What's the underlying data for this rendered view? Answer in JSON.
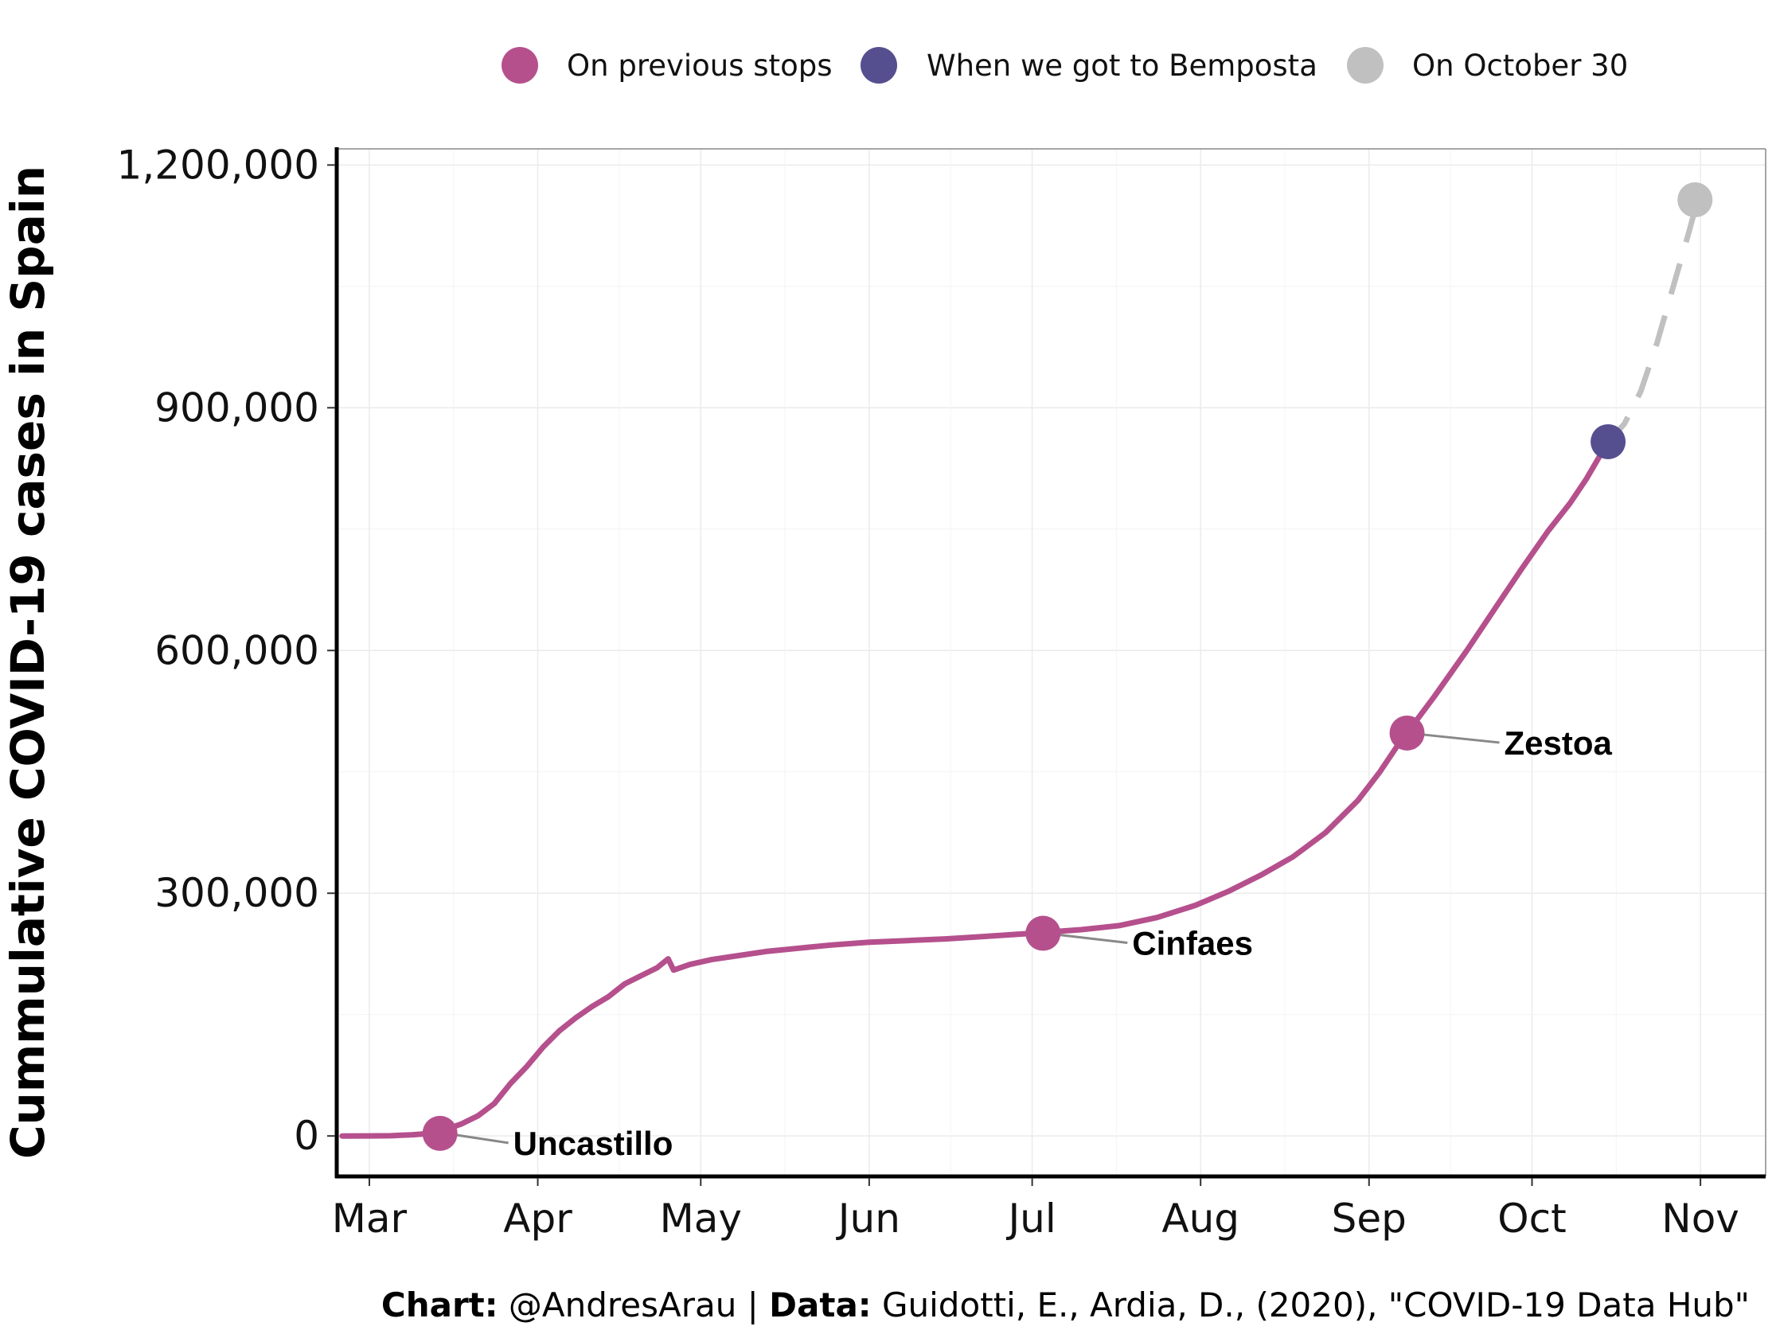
{
  "chart_data": {
    "type": "line",
    "ylabel": "Cummulative COVID-19 cases in Spain",
    "xlabel": "",
    "ylim": [
      -50000,
      1220000
    ],
    "xlim": [
      "2020-02-24",
      "2020-11-13"
    ],
    "yticks": [
      {
        "value": 0,
        "label": "0"
      },
      {
        "value": 300000,
        "label": "300,000"
      },
      {
        "value": 600000,
        "label": "600,000"
      },
      {
        "value": 900000,
        "label": "900,000"
      },
      {
        "value": 1200000,
        "label": "1,200,000"
      }
    ],
    "xticks": [
      {
        "date": "2020-03-01",
        "label": "Mar"
      },
      {
        "date": "2020-04-01",
        "label": "Apr"
      },
      {
        "date": "2020-05-01",
        "label": "May"
      },
      {
        "date": "2020-06-01",
        "label": "Jun"
      },
      {
        "date": "2020-07-01",
        "label": "Jul"
      },
      {
        "date": "2020-08-01",
        "label": "Aug"
      },
      {
        "date": "2020-09-01",
        "label": "Sep"
      },
      {
        "date": "2020-10-01",
        "label": "Oct"
      },
      {
        "date": "2020-11-01",
        "label": "Nov"
      }
    ],
    "grid": true,
    "legend_position": "top",
    "legend": [
      {
        "label": "On previous stops",
        "color": "#b5508d"
      },
      {
        "label": "When we got to Bemposta",
        "color": "#554f8f"
      },
      {
        "label": "On October 30",
        "color": "#c0c0c0"
      }
    ],
    "series": [
      {
        "style": "solid",
        "color": "#b5508d",
        "points": [
          [
            "2020-02-25",
            0
          ],
          [
            "2020-03-01",
            100
          ],
          [
            "2020-03-05",
            300
          ],
          [
            "2020-03-09",
            1500
          ],
          [
            "2020-03-12",
            3000
          ],
          [
            "2020-03-15",
            7800
          ],
          [
            "2020-03-18",
            15000
          ],
          [
            "2020-03-21",
            25000
          ],
          [
            "2020-03-24",
            40000
          ],
          [
            "2020-03-27",
            65000
          ],
          [
            "2020-03-30",
            86000
          ],
          [
            "2020-04-02",
            110000
          ],
          [
            "2020-04-05",
            130000
          ],
          [
            "2020-04-08",
            146000
          ],
          [
            "2020-04-11",
            160000
          ],
          [
            "2020-04-14",
            172000
          ],
          [
            "2020-04-17",
            188000
          ],
          [
            "2020-04-20",
            198000
          ],
          [
            "2020-04-23",
            208000
          ],
          [
            "2020-04-25",
            219000
          ],
          [
            "2020-04-26",
            205000
          ],
          [
            "2020-04-29",
            212000
          ],
          [
            "2020-05-03",
            218000
          ],
          [
            "2020-05-08",
            223000
          ],
          [
            "2020-05-13",
            228000
          ],
          [
            "2020-05-19",
            232000
          ],
          [
            "2020-05-25",
            236000
          ],
          [
            "2020-06-01",
            239500
          ],
          [
            "2020-06-08",
            241500
          ],
          [
            "2020-06-15",
            243500
          ],
          [
            "2020-06-22",
            246500
          ],
          [
            "2020-06-30",
            250000
          ],
          [
            "2020-07-04",
            252000
          ],
          [
            "2020-07-10",
            255000
          ],
          [
            "2020-07-17",
            260000
          ],
          [
            "2020-07-24",
            270000
          ],
          [
            "2020-07-31",
            285000
          ],
          [
            "2020-08-06",
            302000
          ],
          [
            "2020-08-12",
            322000
          ],
          [
            "2020-08-18",
            345000
          ],
          [
            "2020-08-24",
            375000
          ],
          [
            "2020-08-30",
            415000
          ],
          [
            "2020-09-03",
            450000
          ],
          [
            "2020-09-06",
            480000
          ],
          [
            "2020-09-08",
            498000
          ],
          [
            "2020-09-13",
            543000
          ],
          [
            "2020-09-19",
            600000
          ],
          [
            "2020-09-24",
            650000
          ],
          [
            "2020-09-29",
            700000
          ],
          [
            "2020-10-04",
            748000
          ],
          [
            "2020-10-08",
            782000
          ],
          [
            "2020-10-11",
            812000
          ],
          [
            "2020-10-13",
            835000
          ],
          [
            "2020-10-15",
            858000
          ]
        ]
      },
      {
        "style": "dashed",
        "color": "#c0c0c0",
        "points": [
          [
            "2020-10-15",
            858000
          ],
          [
            "2020-10-18",
            880000
          ],
          [
            "2020-10-21",
            920000
          ],
          [
            "2020-10-24",
            980000
          ],
          [
            "2020-10-27",
            1050000
          ],
          [
            "2020-10-30",
            1120000
          ],
          [
            "2020-10-31",
            1145000
          ]
        ]
      }
    ],
    "markers": [
      {
        "date": "2020-03-14",
        "value": 3200,
        "color": "#b5508d",
        "label": "Uncastillo"
      },
      {
        "date": "2020-07-03",
        "value": 250500,
        "color": "#b5508d",
        "label": "Cinfaes"
      },
      {
        "date": "2020-09-08",
        "value": 498000,
        "color": "#b5508d",
        "label": "Zestoa"
      },
      {
        "date": "2020-10-15",
        "value": 858000,
        "color": "#554f8f",
        "label": ""
      },
      {
        "date": "2020-10-31",
        "value": 1157000,
        "color": "#c0c0c0",
        "label": ""
      }
    ]
  },
  "caption": {
    "chart_label": "Chart:",
    "chart_text": " @AndresArau | ",
    "data_label": "Data:",
    "data_text": " Guidotti, E., Ardia, D., (2020), \"COVID-19 Data Hub\""
  }
}
